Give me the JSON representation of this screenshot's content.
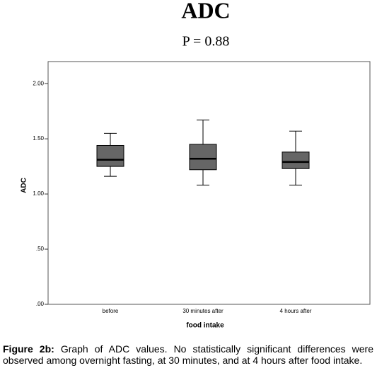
{
  "chart_data": {
    "type": "box",
    "title": "ADC",
    "subtitle": "P = 0.88",
    "x_label": "food intake",
    "y_label": "ADC",
    "categories": [
      "before",
      "30 minutes after",
      "4 hours after"
    ],
    "boxes": [
      {
        "min": 1.16,
        "q1": 1.25,
        "median": 1.31,
        "q3": 1.44,
        "max": 1.55
      },
      {
        "min": 1.08,
        "q1": 1.22,
        "median": 1.32,
        "q3": 1.45,
        "max": 1.67
      },
      {
        "min": 1.08,
        "q1": 1.23,
        "median": 1.29,
        "q3": 1.38,
        "max": 1.57
      }
    ],
    "color": "#666666",
    "ylim": [
      0,
      2.2
    ],
    "yticks": [
      {
        "value": 0,
        "label": ".00"
      },
      {
        "value": 0.5,
        "label": ".50"
      },
      {
        "value": 1,
        "label": "1.00"
      },
      {
        "value": 1.5,
        "label": "1.50"
      },
      {
        "value": 2,
        "label": "2.00"
      }
    ],
    "caption_label": "Figure 2b:",
    "caption": "Graph of ADC values. No statistically significant differences were observed among overnight fasting, at 30 minutes, and at 4 hours after food intake."
  }
}
